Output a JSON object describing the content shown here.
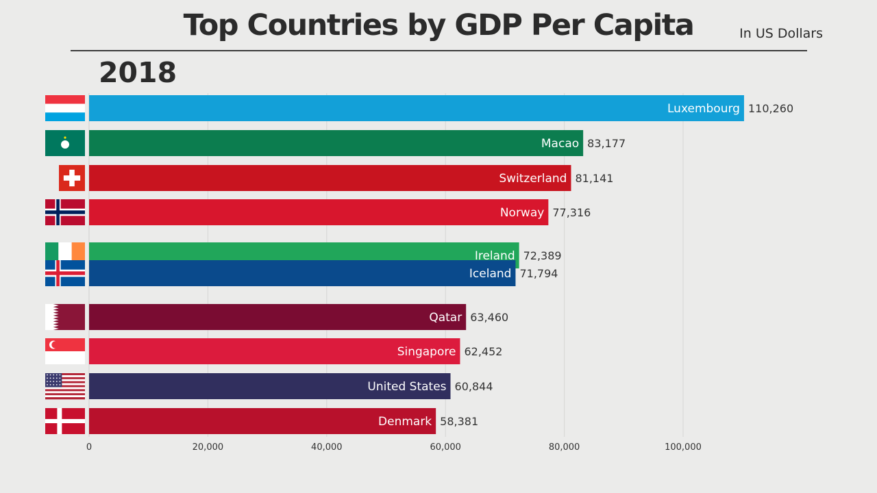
{
  "header": {
    "title": "Top Countries by GDP Per Capita",
    "subtitle": "In US Dollars",
    "year": "2018"
  },
  "chart_data": {
    "type": "bar",
    "orientation": "horizontal",
    "title": "Top Countries by GDP Per Capita",
    "subtitle": "In US Dollars",
    "xlim": [
      0,
      130000
    ],
    "xticks": [
      0,
      20000,
      40000,
      60000,
      80000,
      100000
    ],
    "xtick_labels": [
      "0",
      "20,000",
      "40,000",
      "60,000",
      "80,000",
      "100,000"
    ],
    "grid": true,
    "categories": [
      "Luxembourg",
      "Macao",
      "Switzerland",
      "Norway",
      "Ireland",
      "Iceland",
      "Qatar",
      "Singapore",
      "United States",
      "Denmark"
    ],
    "values": [
      110260,
      83177,
      81141,
      77316,
      72389,
      71794,
      63460,
      62452,
      60844,
      58381
    ],
    "value_labels": [
      "110,260",
      "83,177",
      "81,141",
      "77,316",
      "72,389",
      "71,794",
      "63,460",
      "62,452",
      "60,844",
      "58,381"
    ],
    "colors": [
      "#13a0d8",
      "#0c7d4f",
      "#c8141f",
      "#d8162d",
      "#21a65a",
      "#0a4a8c",
      "#7a0c32",
      "#dc1b3d",
      "#312f5e",
      "#b8112c"
    ],
    "flags": [
      "luxembourg-flag",
      "macao-flag",
      "switzerland-flag",
      "norway-flag",
      "ireland-flag",
      "iceland-flag",
      "qatar-flag",
      "singapore-flag",
      "united-states-flag",
      "denmark-flag"
    ]
  }
}
